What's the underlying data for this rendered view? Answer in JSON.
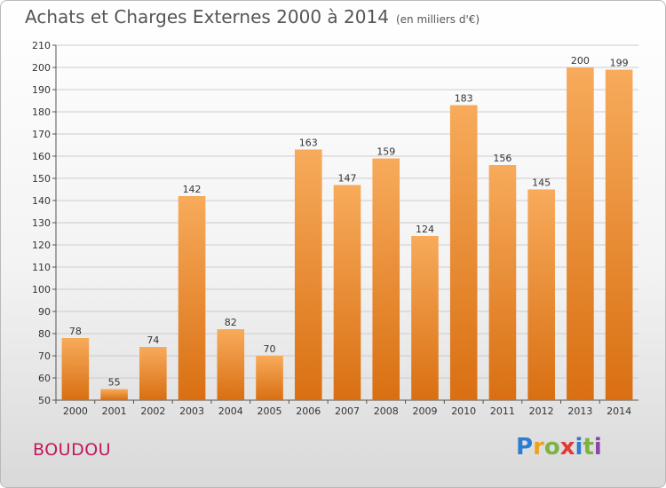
{
  "title": "Achats et Charges Externes 2000 à 2014",
  "unit": "(en milliers d'€)",
  "commune": "BOUDOU",
  "logo": "Proxiti",
  "colors": {
    "bar": "#f0922e",
    "bar_light": "#f7ab5b",
    "bar_dark": "#d96f12",
    "grid": "#cccccc"
  },
  "chart_data": {
    "type": "bar",
    "categories": [
      "2000",
      "2001",
      "2002",
      "2003",
      "2004",
      "2005",
      "2006",
      "2007",
      "2008",
      "2009",
      "2010",
      "2011",
      "2012",
      "2013",
      "2014"
    ],
    "values": [
      78,
      55,
      74,
      142,
      82,
      70,
      163,
      147,
      159,
      124,
      183,
      156,
      145,
      200,
      199
    ],
    "title": "Achats et Charges Externes 2000 à 2014",
    "subtitle": "(en milliers d'€)",
    "ylim": [
      50,
      210
    ],
    "yticks": [
      50,
      60,
      70,
      80,
      90,
      100,
      110,
      120,
      130,
      140,
      150,
      160,
      170,
      180,
      190,
      200,
      210
    ],
    "grid": true
  }
}
